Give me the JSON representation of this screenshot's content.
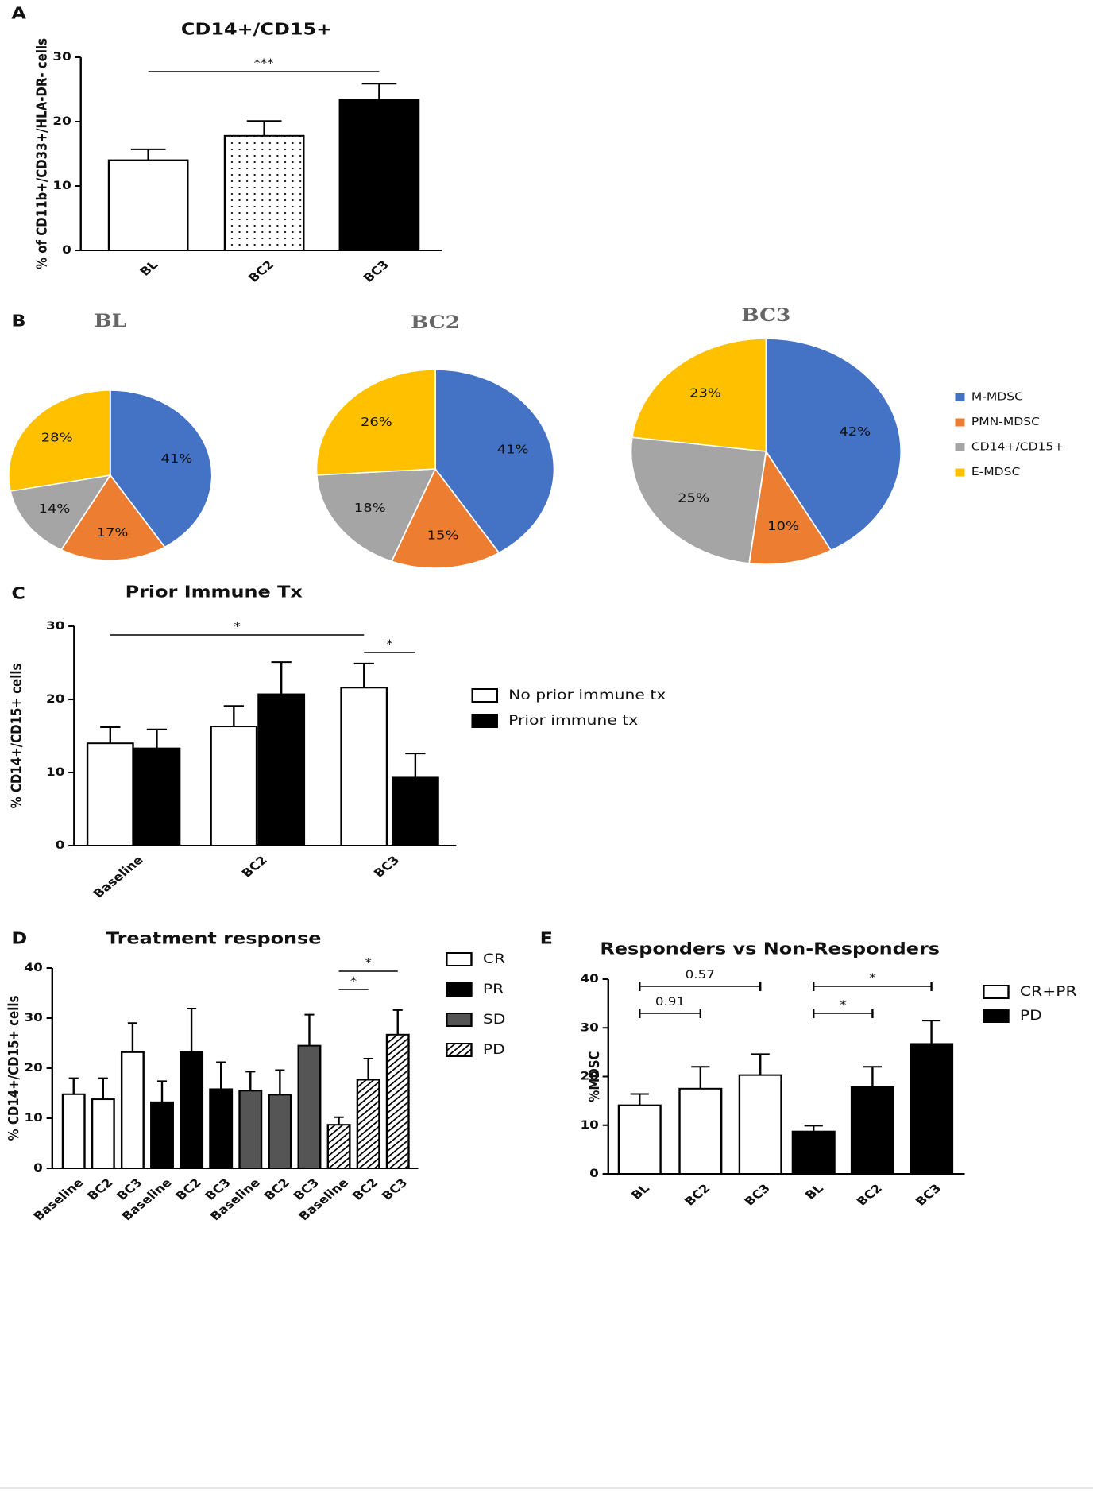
{
  "chart_data": [
    {
      "type": "bar",
      "panel": "A",
      "title": "CD14+/CD15+",
      "ylabel": "% of CD11b+/CD33+/HLA-DR- cells",
      "categories": [
        "BL",
        "BC2",
        "BC3"
      ],
      "values": [
        14,
        17.8,
        23.4
      ],
      "errors": [
        1.7,
        2.3,
        2.5
      ],
      "colors": [
        "#ffffff",
        "#ffffff",
        "#000000"
      ],
      "hatch": [
        "none",
        "dots",
        "none"
      ],
      "ylim": [
        0,
        30
      ],
      "yticks": [
        0,
        10,
        20,
        30
      ],
      "grid": false,
      "annotations": [
        {
          "label": "***",
          "from": 0,
          "to": 2
        }
      ]
    },
    {
      "type": "pie",
      "panel": "B",
      "categories": [
        "M-MDSC",
        "PMN-MDSC",
        "CD14+/CD15+",
        "E-MDSC"
      ],
      "colors": [
        "#4472c4",
        "#ed7d31",
        "#a5a5a5",
        "#ffc000"
      ],
      "legend": "right",
      "pies": [
        {
          "title": "BL",
          "values": [
            41,
            17,
            14,
            28
          ],
          "value_labels": [
            "41%",
            "17%",
            "14%",
            "28%"
          ]
        },
        {
          "title": "BC2",
          "values": [
            41,
            15,
            18,
            26
          ],
          "value_labels": [
            "41%",
            "15%",
            "18%",
            "26%"
          ]
        },
        {
          "title": "BC3",
          "values": [
            42,
            10,
            25,
            23
          ],
          "value_labels": [
            "42%",
            "10%",
            "25%",
            "23%"
          ]
        }
      ]
    },
    {
      "type": "grouped-bar",
      "panel": "C",
      "title": "Prior Immune Tx",
      "ylabel": "% CD14+/CD15+ cells",
      "categories": [
        "Baseline",
        "BC2",
        "BC3"
      ],
      "series": [
        {
          "name": "No prior immune tx",
          "color": "#ffffff",
          "values": [
            14,
            16.3,
            21.6
          ],
          "errors": [
            2.2,
            2.8,
            3.3
          ]
        },
        {
          "name": "Prior immune tx",
          "color": "#000000",
          "values": [
            13.3,
            20.7,
            9.3
          ],
          "errors": [
            2.6,
            4.4,
            3.3
          ]
        }
      ],
      "ylim": [
        0,
        30
      ],
      "yticks": [
        0,
        10,
        20,
        30
      ],
      "grid": false,
      "legend": "right",
      "annotations": [
        {
          "label": "*",
          "from": [
            0,
            0
          ],
          "to": [
            0,
            2
          ]
        },
        {
          "label": "*",
          "from": [
            0,
            2
          ],
          "to": [
            1,
            2
          ]
        }
      ]
    },
    {
      "type": "series-bar",
      "panel": "D",
      "title": "Treatment response",
      "ylabel": "% CD14+/CD15+ cells",
      "categories": [
        "Baseline",
        "BC2",
        "BC3"
      ],
      "series": [
        {
          "name": "CR",
          "color": "#ffffff",
          "hatch": "none",
          "values": [
            14.8,
            13.8,
            23.2
          ],
          "errors": [
            3.2,
            4.2,
            5.8
          ]
        },
        {
          "name": "PR",
          "color": "#000000",
          "hatch": "none",
          "values": [
            13.2,
            23.2,
            15.8
          ],
          "errors": [
            4.2,
            8.7,
            5.4
          ]
        },
        {
          "name": "SD",
          "color": "#555555",
          "hatch": "none",
          "values": [
            15.5,
            14.7,
            24.5
          ],
          "errors": [
            3.8,
            4.9,
            6.2
          ]
        },
        {
          "name": "PD",
          "color": "#ffffff",
          "hatch": "diag",
          "values": [
            8.7,
            17.7,
            26.7
          ],
          "errors": [
            1.5,
            4.2,
            4.9
          ]
        }
      ],
      "ylim": [
        0,
        40
      ],
      "yticks": [
        0,
        10,
        20,
        30,
        40
      ],
      "grid": false,
      "legend": "right",
      "annotations": [
        {
          "label": "*",
          "from": [
            3,
            0
          ],
          "to": [
            3,
            1
          ]
        },
        {
          "label": "*",
          "from": [
            3,
            0
          ],
          "to": [
            3,
            2
          ]
        }
      ]
    },
    {
      "type": "series-bar",
      "panel": "E",
      "title": "Responders vs Non-Responders",
      "ylabel": "%MDSC",
      "categories": [
        "BL",
        "BC2",
        "BC3"
      ],
      "series": [
        {
          "name": "CR+PR",
          "color": "#ffffff",
          "hatch": "none",
          "values": [
            14.1,
            17.5,
            20.3
          ],
          "errors": [
            2.3,
            4.5,
            4.3
          ]
        },
        {
          "name": "PD",
          "color": "#000000",
          "hatch": "none",
          "values": [
            8.7,
            17.8,
            26.7
          ],
          "errors": [
            1.2,
            4.2,
            4.8
          ]
        }
      ],
      "ylim": [
        0,
        40
      ],
      "yticks": [
        0,
        10,
        20,
        30,
        40
      ],
      "grid": false,
      "legend": "right",
      "annotations": [
        {
          "label": "0.91",
          "from": [
            0,
            0
          ],
          "to": [
            0,
            1
          ]
        },
        {
          "label": "0.57",
          "from": [
            0,
            0
          ],
          "to": [
            0,
            2
          ]
        },
        {
          "label": "*",
          "from": [
            1,
            0
          ],
          "to": [
            1,
            1
          ]
        },
        {
          "label": "*",
          "from": [
            1,
            0
          ],
          "to": [
            1,
            2
          ]
        }
      ]
    }
  ]
}
